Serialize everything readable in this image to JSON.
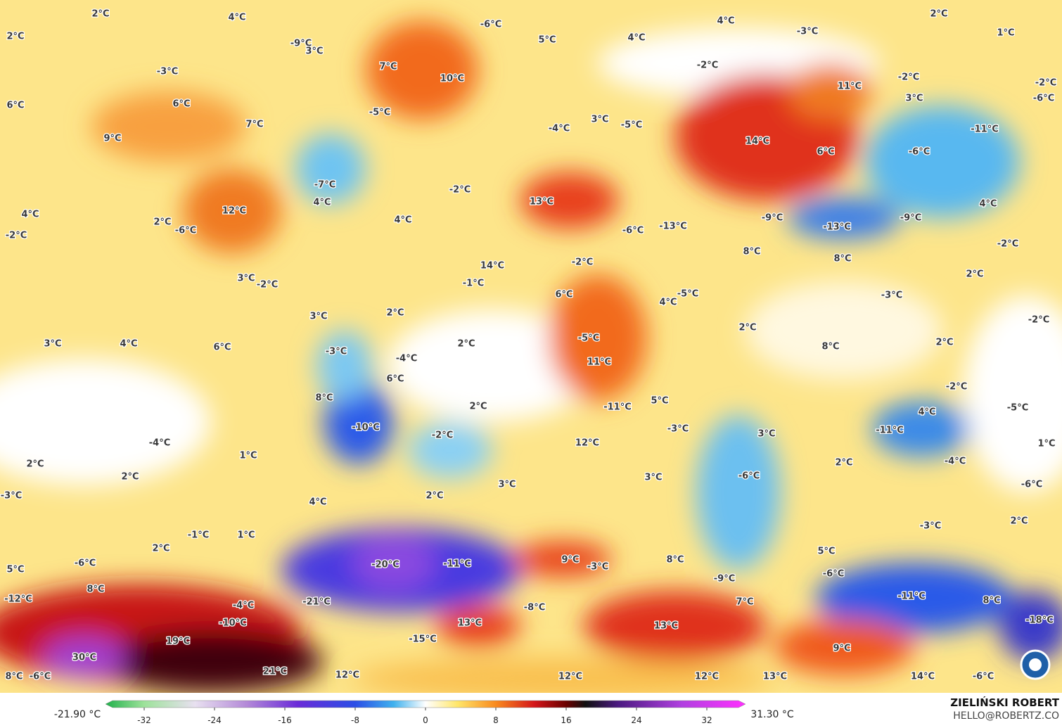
{
  "map": {
    "labels": [
      "2°C",
      "4°C",
      "-6°C",
      "4°C",
      "2°C",
      "2°C",
      "-9°C",
      "3°C",
      "5°C",
      "4°C",
      "-3°C",
      "1°C",
      "7°C",
      "10°C",
      "-3°C",
      "-2°C",
      "-2°C",
      "11°C",
      "-2°C",
      "6°C",
      "6°C",
      "-5°C",
      "3°C",
      "-6°C",
      "7°C",
      "-4°C",
      "3°C",
      "-5°C",
      "-11°C",
      "9°C",
      "14°C",
      "6°C",
      "-6°C",
      "-7°C",
      "-2°C",
      "4°C",
      "13°C",
      "4°C",
      "12°C",
      "2°C",
      "-6°C",
      "4°C",
      "-9°C",
      "-9°C",
      "4°C",
      "-2°C",
      "-6°C",
      "-13°C",
      "-13°C",
      "-2°C",
      "8°C",
      "8°C",
      "14°C",
      "-2°C",
      "2°C",
      "3°C",
      "-2°C",
      "-1°C",
      "6°C",
      "-5°C",
      "4°C",
      "-3°C",
      "-2°C",
      "3°C",
      "2°C",
      "2°C",
      "3°C",
      "4°C",
      "6°C",
      "2°C",
      "-5°C",
      "8°C",
      "2°C",
      "-3°C",
      "-4°C",
      "6°C",
      "11°C",
      "-2°C",
      "8°C",
      "2°C",
      "5°C",
      "-11°C",
      "4°C",
      "-5°C",
      "-10°C",
      "-2°C",
      "-3°C",
      "3°C",
      "-11°C",
      "-4°C",
      "12°C",
      "1°C",
      "2°C",
      "1°C",
      "2°C",
      "-4°C",
      "2°C",
      "3°C",
      "3°C",
      "-6°C",
      "-6°C",
      "-3°C",
      "2°C",
      "4°C",
      "2°C",
      "-3°C",
      "-1°C",
      "1°C",
      "2°C",
      "5°C",
      "9°C",
      "-3°C",
      "8°C",
      "-6°C",
      "-20°C",
      "-11°C",
      "5°C",
      "-9°C",
      "-6°C",
      "8°C",
      "7°C",
      "-11°C",
      "8°C",
      "-12°C",
      "-21°C",
      "-4°C",
      "-8°C",
      "-10°C",
      "13°C",
      "13°C",
      "-18°C",
      "19°C",
      "-15°C",
      "9°C",
      "30°C",
      "21°C",
      "8°C",
      "-6°C",
      "12°C",
      "12°C",
      "12°C",
      "13°C",
      "14°C",
      "-6°C"
    ]
  },
  "colorbar": {
    "min_label": "-21.90 °C",
    "max_label": "31.30 °C",
    "lim": [
      -36,
      36
    ],
    "ticks": [
      -32,
      -24,
      -16,
      -8,
      0,
      8,
      16,
      24,
      32
    ]
  },
  "credits": {
    "author": "ZIELIŃSKI ROBERT",
    "contact": "HELLO@ROBERTZ.CO"
  }
}
